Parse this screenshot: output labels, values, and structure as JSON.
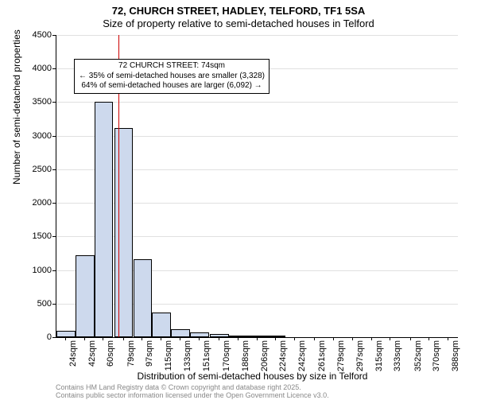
{
  "title": "72, CHURCH STREET, HADLEY, TELFORD, TF1 5SA",
  "subtitle": "Size of property relative to semi-detached houses in Telford",
  "chart": {
    "type": "histogram",
    "y_axis_label": "Number of semi-detached properties",
    "x_axis_label": "Distribution of semi-detached houses by size in Telford",
    "ylim": [
      0,
      4500
    ],
    "ytick_step": 500,
    "background_color": "#ffffff",
    "grid_color": "#e0e0e0",
    "bar_fill": "#cdd9ed",
    "bar_border": "#000000",
    "reference_line_x": 74,
    "reference_line_color": "#cc0000",
    "x_ticks": [
      24,
      42,
      60,
      79,
      97,
      115,
      133,
      151,
      170,
      188,
      206,
      224,
      242,
      261,
      279,
      297,
      315,
      333,
      352,
      370,
      388
    ],
    "bars": [
      {
        "x": 24,
        "value": 90
      },
      {
        "x": 42,
        "value": 1220
      },
      {
        "x": 60,
        "value": 3500
      },
      {
        "x": 79,
        "value": 3120
      },
      {
        "x": 97,
        "value": 1160
      },
      {
        "x": 115,
        "value": 370
      },
      {
        "x": 133,
        "value": 120
      },
      {
        "x": 151,
        "value": 70
      },
      {
        "x": 170,
        "value": 45
      },
      {
        "x": 188,
        "value": 25
      },
      {
        "x": 206,
        "value": 10
      },
      {
        "x": 224,
        "value": 5
      }
    ]
  },
  "annotation": {
    "line1": "72 CHURCH STREET: 74sqm",
    "line2": "← 35% of semi-detached houses are smaller (3,328)",
    "line3": "64% of semi-detached houses are larger (6,092) →"
  },
  "footer": {
    "line1": "Contains HM Land Registry data © Crown copyright and database right 2025.",
    "line2": "Contains public sector information licensed under the Open Government Licence v3.0."
  }
}
